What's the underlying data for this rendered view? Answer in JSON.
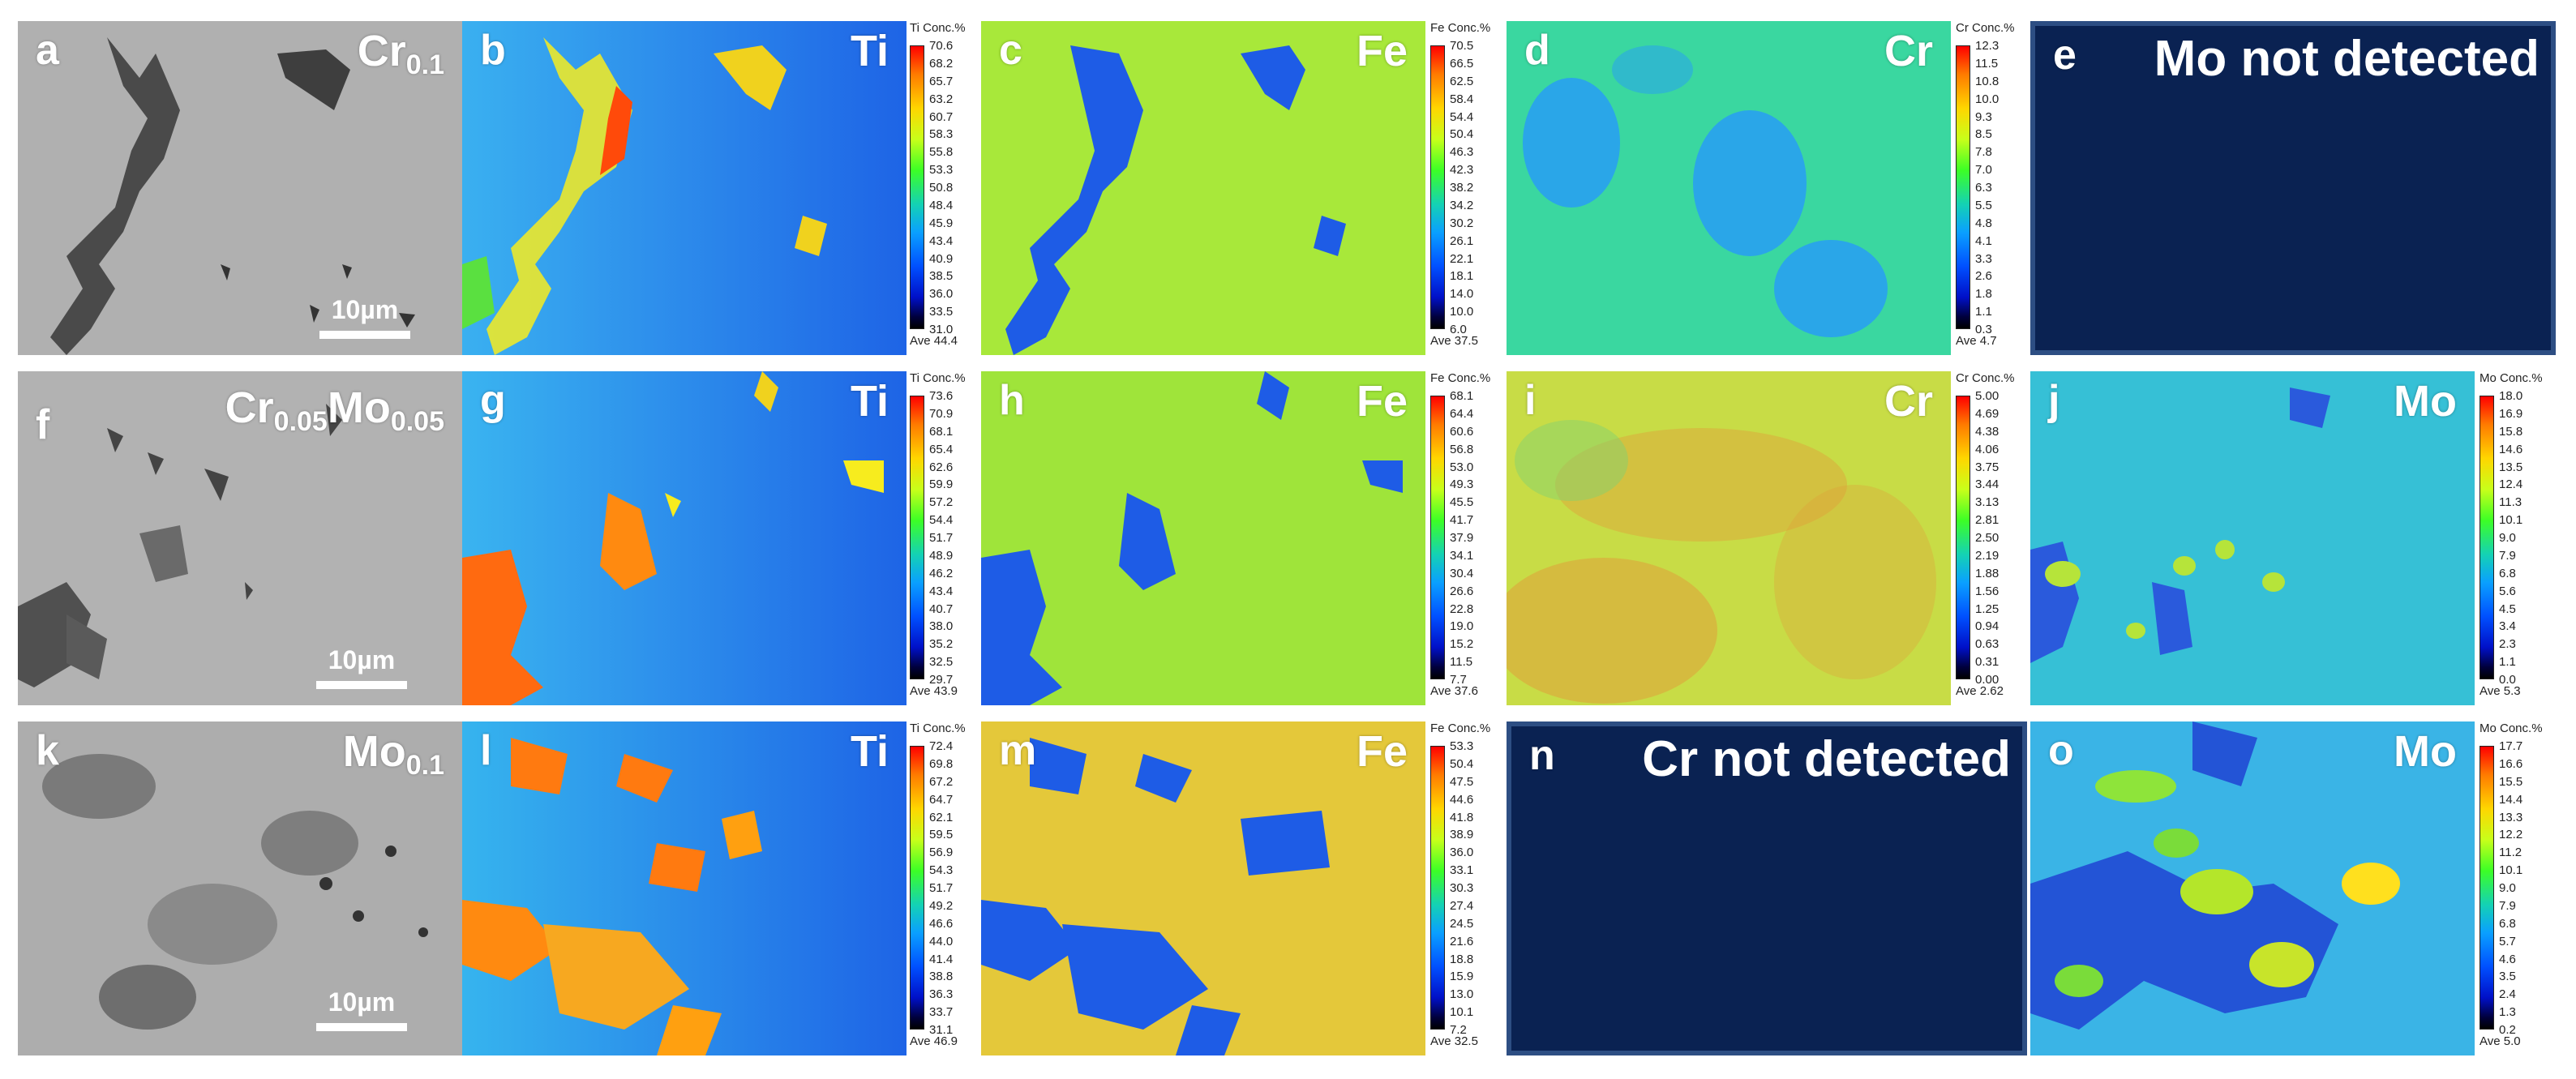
{
  "panels": [
    {
      "letter": "a",
      "label_main": "Cr",
      "label_sub": "0.1",
      "type": "sem",
      "scalebar": "10µm"
    },
    {
      "letter": "b",
      "element": "Ti",
      "type": "map",
      "colorbar": {
        "title": "Ti Conc.%",
        "ticks": [
          "70.6",
          "68.2",
          "65.7",
          "63.2",
          "60.7",
          "58.3",
          "55.8",
          "53.3",
          "50.8",
          "48.4",
          "45.9",
          "43.4",
          "40.9",
          "38.5",
          "36.0",
          "33.5",
          "31.0"
        ],
        "ave": "Ave 44.4"
      }
    },
    {
      "letter": "c",
      "element": "Fe",
      "type": "map",
      "colorbar": {
        "title": "Fe Conc.%",
        "ticks": [
          "70.5",
          "66.5",
          "62.5",
          "58.4",
          "54.4",
          "50.4",
          "46.3",
          "42.3",
          "38.2",
          "34.2",
          "30.2",
          "26.1",
          "22.1",
          "18.1",
          "14.0",
          "10.0",
          "6.0"
        ],
        "ave": "Ave 37.5"
      }
    },
    {
      "letter": "d",
      "element": "Cr",
      "type": "map",
      "colorbar": {
        "title": "Cr Conc.%",
        "ticks": [
          "12.3",
          "11.5",
          "10.8",
          "10.0",
          "9.3",
          "8.5",
          "7.8",
          "7.0",
          "6.3",
          "5.5",
          "4.8",
          "4.1",
          "3.3",
          "2.6",
          "1.8",
          "1.1",
          "0.3"
        ],
        "ave": "Ave 4.7"
      }
    },
    {
      "letter": "e",
      "notdetected": "Mo not detected",
      "type": "nd"
    },
    {
      "letter": "f",
      "label_main": "Cr",
      "label_sub": "0.05",
      "label_main2": "Mo",
      "label_sub2": "0.05",
      "type": "sem",
      "scalebar": "10µm"
    },
    {
      "letter": "g",
      "element": "Ti",
      "type": "map",
      "colorbar": {
        "title": "Ti Conc.%",
        "ticks": [
          "73.6",
          "70.9",
          "68.1",
          "65.4",
          "62.6",
          "59.9",
          "57.2",
          "54.4",
          "51.7",
          "48.9",
          "46.2",
          "43.4",
          "40.7",
          "38.0",
          "35.2",
          "32.5",
          "29.7"
        ],
        "ave": "Ave 43.9"
      }
    },
    {
      "letter": "h",
      "element": "Fe",
      "type": "map",
      "colorbar": {
        "title": "Fe Conc.%",
        "ticks": [
          "68.1",
          "64.4",
          "60.6",
          "56.8",
          "53.0",
          "49.3",
          "45.5",
          "41.7",
          "37.9",
          "34.1",
          "30.4",
          "26.6",
          "22.8",
          "19.0",
          "15.2",
          "11.5",
          "7.7"
        ],
        "ave": "Ave 37.6"
      }
    },
    {
      "letter": "i",
      "element": "Cr",
      "type": "map",
      "colorbar": {
        "title": "Cr Conc.%",
        "ticks": [
          "5.00",
          "4.69",
          "4.38",
          "4.06",
          "3.75",
          "3.44",
          "3.13",
          "2.81",
          "2.50",
          "2.19",
          "1.88",
          "1.56",
          "1.25",
          "0.94",
          "0.63",
          "0.31",
          "0.00"
        ],
        "ave": "Ave 2.62"
      }
    },
    {
      "letter": "j",
      "element": "Mo",
      "type": "map",
      "colorbar": {
        "title": "Mo Conc.%",
        "ticks": [
          "18.0",
          "16.9",
          "15.8",
          "14.6",
          "13.5",
          "12.4",
          "11.3",
          "10.1",
          "9.0",
          "7.9",
          "6.8",
          "5.6",
          "4.5",
          "3.4",
          "2.3",
          "1.1",
          "0.0"
        ],
        "ave": "Ave 5.3"
      }
    },
    {
      "letter": "k",
      "label_main": "Mo",
      "label_sub": "0.1",
      "type": "sem",
      "scalebar": "10µm"
    },
    {
      "letter": "l",
      "element": "Ti",
      "type": "map",
      "colorbar": {
        "title": "Ti Conc.%",
        "ticks": [
          "72.4",
          "69.8",
          "67.2",
          "64.7",
          "62.1",
          "59.5",
          "56.9",
          "54.3",
          "51.7",
          "49.2",
          "46.6",
          "44.0",
          "41.4",
          "38.8",
          "36.3",
          "33.7",
          "31.1"
        ],
        "ave": "Ave 46.9"
      }
    },
    {
      "letter": "m",
      "element": "Fe",
      "type": "map",
      "colorbar": {
        "title": "Fe Conc.%",
        "ticks": [
          "53.3",
          "50.4",
          "47.5",
          "44.6",
          "41.8",
          "38.9",
          "36.0",
          "33.1",
          "30.3",
          "27.4",
          "24.5",
          "21.6",
          "18.8",
          "15.9",
          "13.0",
          "10.1",
          "7.2"
        ],
        "ave": "Ave 32.5"
      }
    },
    {
      "letter": "n",
      "notdetected": "Cr not detected",
      "type": "nd"
    },
    {
      "letter": "o",
      "element": "Mo",
      "type": "map",
      "colorbar": {
        "title": "Mo Conc.%",
        "ticks": [
          "17.7",
          "16.6",
          "15.5",
          "14.4",
          "13.3",
          "12.2",
          "11.2",
          "10.1",
          "9.0",
          "7.9",
          "6.8",
          "5.7",
          "4.6",
          "3.5",
          "2.4",
          "1.3",
          "0.2"
        ],
        "ave": "Ave 5.0"
      }
    }
  ]
}
